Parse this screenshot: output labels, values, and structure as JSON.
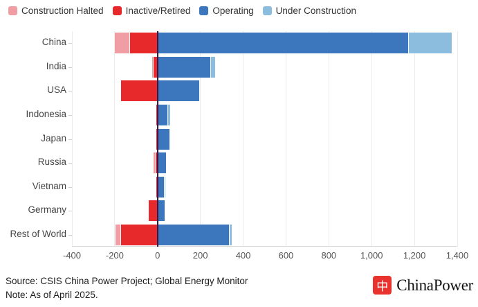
{
  "legend": {
    "items": [
      {
        "label": "Construction Halted",
        "color": "#f09da3"
      },
      {
        "label": "Inactive/Retired",
        "color": "#e8292c"
      },
      {
        "label": "Operating",
        "color": "#3c76bd"
      },
      {
        "label": "Under Construction",
        "color": "#8cbdde"
      }
    ]
  },
  "chart_data": {
    "type": "bar",
    "orientation": "horizontal",
    "stacked": true,
    "diverging": true,
    "categories": [
      "China",
      "India",
      "USA",
      "Indonesia",
      "Japan",
      "Russia",
      "Vietnam",
      "Germany",
      "Rest of World"
    ],
    "series": [
      {
        "name": "Construction Halted",
        "color": "#f09da3",
        "values": [
          -70,
          -5,
          0,
          0,
          0,
          -10,
          0,
          0,
          -25
        ]
      },
      {
        "name": "Inactive/Retired",
        "color": "#e8292c",
        "values": [
          -130,
          -20,
          -170,
          -5,
          -5,
          -10,
          -7,
          -40,
          -170
        ]
      },
      {
        "name": "Operating",
        "color": "#3c76bd",
        "values": [
          1170,
          245,
          195,
          45,
          57,
          40,
          29,
          33,
          335
        ]
      },
      {
        "name": "Under Construction",
        "color": "#8cbdde",
        "values": [
          205,
          25,
          0,
          15,
          0,
          0,
          8,
          0,
          10
        ]
      }
    ],
    "xlim": [
      -400,
      1400
    ],
    "xticks": [
      -400,
      -200,
      0,
      200,
      400,
      600,
      800,
      1000,
      1200,
      1400
    ],
    "grid": "vertical",
    "zero_line_color": "#351a4d",
    "legend_position": "top"
  },
  "footer": {
    "source": "Source: CSIS China Power Project; Global Energy Monitor",
    "note": "Note: As of April 2025."
  },
  "logo": {
    "glyph": "中",
    "glyph_color": "#e8322e",
    "text": "ChinaPower"
  }
}
